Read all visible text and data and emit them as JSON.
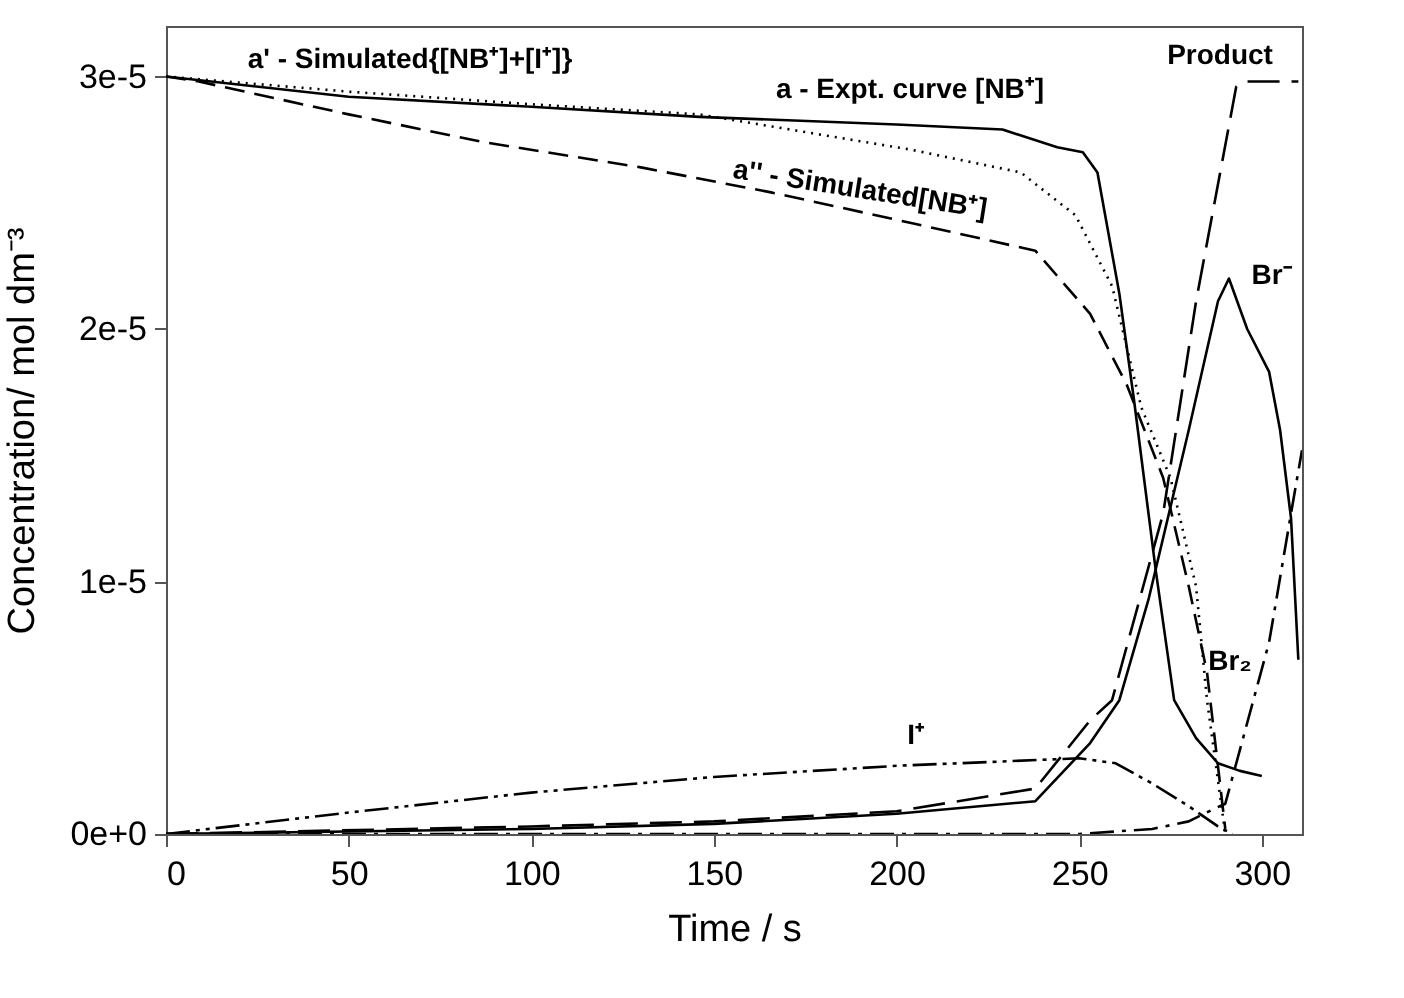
{
  "chart_data": {
    "type": "line",
    "xlabel": "Time / s",
    "ylabel": "Concentration/ mol dm⁻³",
    "xlim": [
      0,
      311
    ],
    "xticks": [
      0,
      50,
      100,
      150,
      200,
      250,
      300
    ],
    "ylim": [
      0,
      3.2e-05
    ],
    "yticks": [
      {
        "value": 0,
        "label": "0e+0"
      },
      {
        "value": 1e-05,
        "label": "1e-5"
      },
      {
        "value": 2e-05,
        "label": "2e-5"
      },
      {
        "value": 3e-05,
        "label": "3e-5"
      }
    ],
    "grid": false,
    "legend": false,
    "marker": "none",
    "series": [
      {
        "name": "a - Expt. curve [NB⁺]",
        "color": "#000000",
        "line_style": "solid",
        "x": [
          0,
          50,
          100,
          146,
          200,
          229,
          244,
          251,
          255,
          261,
          265,
          271,
          276,
          282,
          288,
          294,
          300
        ],
        "values": [
          3e-05,
          2.92e-05,
          2.88e-05,
          2.84e-05,
          2.81e-05,
          2.79e-05,
          2.72e-05,
          2.7e-05,
          2.62e-05,
          2.14e-05,
          1.72e-05,
          1.04e-05,
          5.3e-06,
          3.8e-06,
          2.8e-06,
          2.5e-06,
          2.3e-06
        ]
      },
      {
        "name": "a' - Simulated{[NB⁺]+[I⁺]}",
        "color": "#000000",
        "line_style": "dotted",
        "x": [
          0,
          50,
          100,
          146,
          204,
          234,
          249,
          259,
          267,
          275,
          282,
          285,
          290
        ],
        "values": [
          3e-05,
          2.94e-05,
          2.89e-05,
          2.85e-05,
          2.71e-05,
          2.62e-05,
          2.45e-05,
          2.17e-05,
          1.69e-05,
          1.41e-05,
          9.8e-06,
          5.3e-06,
          0.0
        ]
      },
      {
        "name": "a'' - Simulated[NB⁺]",
        "color": "#000000",
        "line_style": "dashed",
        "x": [
          0,
          9,
          50,
          87,
          130,
          166,
          204,
          238,
          253,
          263,
          273,
          280,
          285,
          290
        ],
        "values": [
          3e-05,
          2.98e-05,
          2.85e-05,
          2.74e-05,
          2.64e-05,
          2.54e-05,
          2.42e-05,
          2.31e-05,
          2.06e-05,
          1.78e-05,
          1.41e-05,
          9.8e-06,
          6.4e-06,
          2e-07
        ]
      },
      {
        "name": "Br⁻",
        "color": "#000000",
        "line_style": "solid",
        "x": [
          0,
          100,
          150,
          200,
          238,
          253,
          261,
          269,
          280,
          288,
          291,
          296,
          302,
          305,
          308,
          310
        ],
        "values": [
          0.0,
          2e-07,
          4e-07,
          8e-07,
          1.3e-06,
          3.6e-06,
          5.3e-06,
          9.3e-06,
          1.6e-05,
          2.11e-05,
          2.2e-05,
          2e-05,
          1.83e-05,
          1.6e-05,
          1.25e-05,
          6.9e-06
        ]
      },
      {
        "name": "Product",
        "color": "#000000",
        "line_style": "longdash",
        "x": [
          0,
          100,
          150,
          200,
          238,
          253,
          259,
          273,
          282,
          293,
          296,
          310
        ],
        "values": [
          0.0,
          3e-07,
          5e-07,
          9e-07,
          1.8e-06,
          4.5e-06,
          5.3e-06,
          1.27e-05,
          2.11e-05,
          2.96e-05,
          2.98e-05,
          2.98e-05
        ]
      },
      {
        "name": "I⁺",
        "color": "#000000",
        "line_style": "dashdotdot",
        "x": [
          0,
          50,
          100,
          150,
          200,
          250,
          260,
          270,
          280,
          288,
          292
        ],
        "values": [
          0.0,
          8.5e-07,
          1.64e-06,
          2.26e-06,
          2.7e-06,
          3e-06,
          2.8e-06,
          2e-06,
          1.1e-06,
          3e-07,
          0.0
        ]
      },
      {
        "name": "Br₂",
        "color": "#000000",
        "line_style": "dashdot",
        "x": [
          0,
          250,
          270,
          280,
          287,
          290,
          302,
          308,
          311
        ],
        "values": [
          0.0,
          0.0,
          2e-07,
          5e-07,
          1e-06,
          1.2e-06,
          7.6e-06,
          1.27e-05,
          1.52e-05
        ]
      }
    ]
  }
}
